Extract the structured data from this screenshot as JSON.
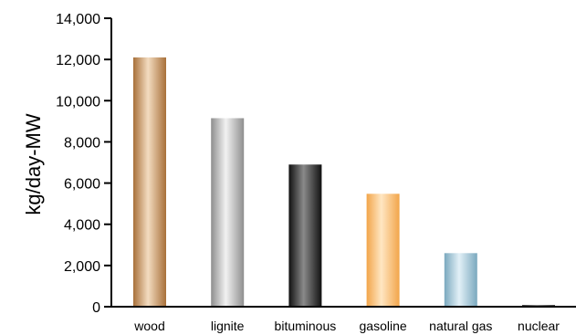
{
  "chart_data": {
    "type": "bar",
    "title": "",
    "xlabel": "",
    "ylabel": "kg/day-MW",
    "ylim": [
      0,
      14000
    ],
    "yticks": [
      0,
      2000,
      4000,
      6000,
      8000,
      10000,
      12000,
      14000
    ],
    "ytick_labels": [
      "0",
      "2,000",
      "4,000",
      "6,000",
      "8,000",
      "10,000",
      "12,000",
      "14,000"
    ],
    "grid": false,
    "legend": "none",
    "categories": [
      "wood",
      "lignite",
      "bituminous",
      "gasoline",
      "natural gas",
      "nuclear"
    ],
    "values": [
      12100,
      9150,
      6900,
      5480,
      2600,
      50
    ],
    "bar_colors": [
      {
        "dark": "#a8703a",
        "light": "#f3dcc0"
      },
      {
        "dark": "#8e8e8e",
        "light": "#f2f2f2"
      },
      {
        "dark": "#111111",
        "light": "#8a8a8a"
      },
      {
        "dark": "#f2a54a",
        "light": "#ffe6c2"
      },
      {
        "dark": "#7aa8be",
        "light": "#e2f0f7"
      },
      {
        "dark": "#444444",
        "light": "#888888"
      }
    ]
  }
}
